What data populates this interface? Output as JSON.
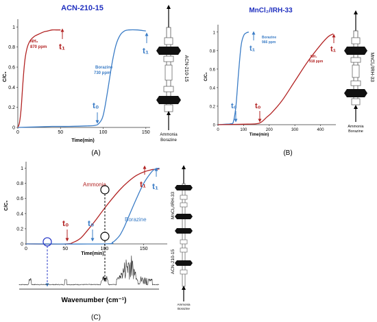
{
  "colors": {
    "ammonia": "#b22222",
    "borazine": "#3a7cc6",
    "title": "#1f2fbf",
    "axis": "#333333"
  },
  "panels": {
    "A": {
      "title": "ACN-210-15",
      "caption": "(A)",
      "xlabel": "Time(min)",
      "ylabel": "C/C₀",
      "xticks": [
        "0",
        "50",
        "100",
        "150"
      ],
      "yticks": [
        "0",
        "0.2",
        "0.4",
        "0.6",
        "0.8",
        "1"
      ],
      "ammonia_label": "NH₃",
      "ammonia_ppm": "870 ppm",
      "borazine_label": "Borazine",
      "borazine_ppm": "730 ppm",
      "t0": "t₀",
      "t1_ammonia": "t₁",
      "t1_borazine": "t₁",
      "column_label": "ACN-210-15",
      "inlet_label_1": "Ammonia",
      "inlet_label_2": "Borazine"
    },
    "B": {
      "title": "MnCl₂/IRH-33",
      "caption": "(B)",
      "xlabel": "Time(min)",
      "ylabel": "C/C₀",
      "xticks": [
        "0",
        "100",
        "200",
        "300",
        "400"
      ],
      "yticks": [
        "0",
        "0.2",
        "0.4",
        "0.6",
        "0.8",
        "1"
      ],
      "ammonia_label": "NH₃",
      "ammonia_ppm": "918 ppm",
      "borazine_label": "Borazine",
      "borazine_ppm": "966 ppm",
      "t0_borazine": "t₀",
      "t0_ammonia": "t₀",
      "t1_borazine": "t₁",
      "t1_ammonia": "t₁",
      "column_label": "MnCl₂/IRH-33",
      "inlet_label_1": "Ammonia",
      "inlet_label_2": "Borazine"
    },
    "C": {
      "caption": "(C)",
      "xlabel": "Time(min)",
      "ylabel": "C/C₀",
      "xticks": [
        "0",
        "50",
        "100",
        "150"
      ],
      "yticks": [
        "0",
        "0.2",
        "0.4",
        "0.6",
        "0.8",
        "1"
      ],
      "ammonia_label": "Ammonia",
      "borazine_label": "Borazine",
      "t0_ammonia": "t₀",
      "t0_borazine": "t₀",
      "t1_ammonia": "t₁",
      "t1_borazine": "t₁",
      "spectrum_xlabel": "Wavenumber (cm⁻¹)",
      "upper_column_label": "MnCl₂/IRH-33",
      "lower_column_label": "ACN-210-15",
      "inlet_label_1": "Ammonia",
      "inlet_label_2": "Borazine"
    }
  },
  "chart_data": [
    {
      "type": "line",
      "panel": "A",
      "title": "ACN-210-15",
      "xlabel": "Time(min)",
      "ylabel": "C/C₀",
      "xlim": [
        0,
        155
      ],
      "ylim": [
        0,
        1.05
      ],
      "series": [
        {
          "name": "NH₃ 870 ppm",
          "color": "#b22222",
          "x": [
            0,
            2,
            4,
            6,
            8,
            10,
            12,
            15,
            20,
            25,
            30,
            35,
            40,
            45,
            50
          ],
          "y": [
            0,
            0.05,
            0.2,
            0.45,
            0.65,
            0.76,
            0.82,
            0.87,
            0.91,
            0.93,
            0.95,
            0.96,
            0.97,
            0.97,
            0.97
          ]
        },
        {
          "name": "Borazine 730 ppm",
          "color": "#3a7cc6",
          "x": [
            0,
            20,
            40,
            60,
            80,
            90,
            95,
            100,
            105,
            110,
            115,
            120,
            125,
            130,
            140,
            150
          ],
          "y": [
            0,
            0.005,
            0.01,
            0.01,
            0.015,
            0.02,
            0.04,
            0.12,
            0.35,
            0.62,
            0.82,
            0.92,
            0.96,
            0.97,
            0.97,
            0.96
          ]
        }
      ]
    },
    {
      "type": "line",
      "panel": "B",
      "title": "MnCl₂/IRH-33",
      "xlabel": "Time(min)",
      "ylabel": "C/C₀",
      "xlim": [
        0,
        460
      ],
      "ylim": [
        0,
        1.05
      ],
      "series": [
        {
          "name": "Borazine 966 ppm",
          "color": "#3a7cc6",
          "x": [
            0,
            30,
            50,
            60,
            70,
            80,
            90,
            100,
            110,
            120
          ],
          "y": [
            0,
            0.005,
            0.01,
            0.03,
            0.2,
            0.55,
            0.85,
            0.96,
            0.99,
            1.0
          ]
        },
        {
          "name": "NH₃ 918 ppm",
          "color": "#b22222",
          "x": [
            0,
            100,
            150,
            170,
            190,
            210,
            250,
            300,
            350,
            400,
            430,
            450
          ],
          "y": [
            0,
            0.005,
            0.01,
            0.03,
            0.08,
            0.13,
            0.26,
            0.47,
            0.68,
            0.86,
            0.95,
            0.98
          ]
        }
      ]
    },
    {
      "type": "line",
      "panel": "C",
      "xlabel": "Time(min)",
      "ylabel": "C/C₀",
      "xlim": [
        0,
        180
      ],
      "ylim": [
        0,
        1.05
      ],
      "series": [
        {
          "name": "Ammonia",
          "color": "#b22222",
          "x": [
            0,
            50,
            60,
            70,
            80,
            90,
            100,
            110,
            120,
            130,
            140,
            150,
            160,
            170
          ],
          "y": [
            0,
            0.0,
            0.02,
            0.08,
            0.2,
            0.33,
            0.47,
            0.6,
            0.72,
            0.82,
            0.9,
            0.95,
            0.98,
            0.99
          ]
        },
        {
          "name": "Borazine",
          "color": "#3a7cc6",
          "x": [
            0,
            100,
            110,
            115,
            120,
            125,
            130,
            140,
            150,
            160,
            165,
            170
          ],
          "y": [
            0,
            0.0,
            0.02,
            0.06,
            0.12,
            0.22,
            0.34,
            0.58,
            0.8,
            0.95,
            0.99,
            1.0
          ]
        }
      ]
    }
  ]
}
